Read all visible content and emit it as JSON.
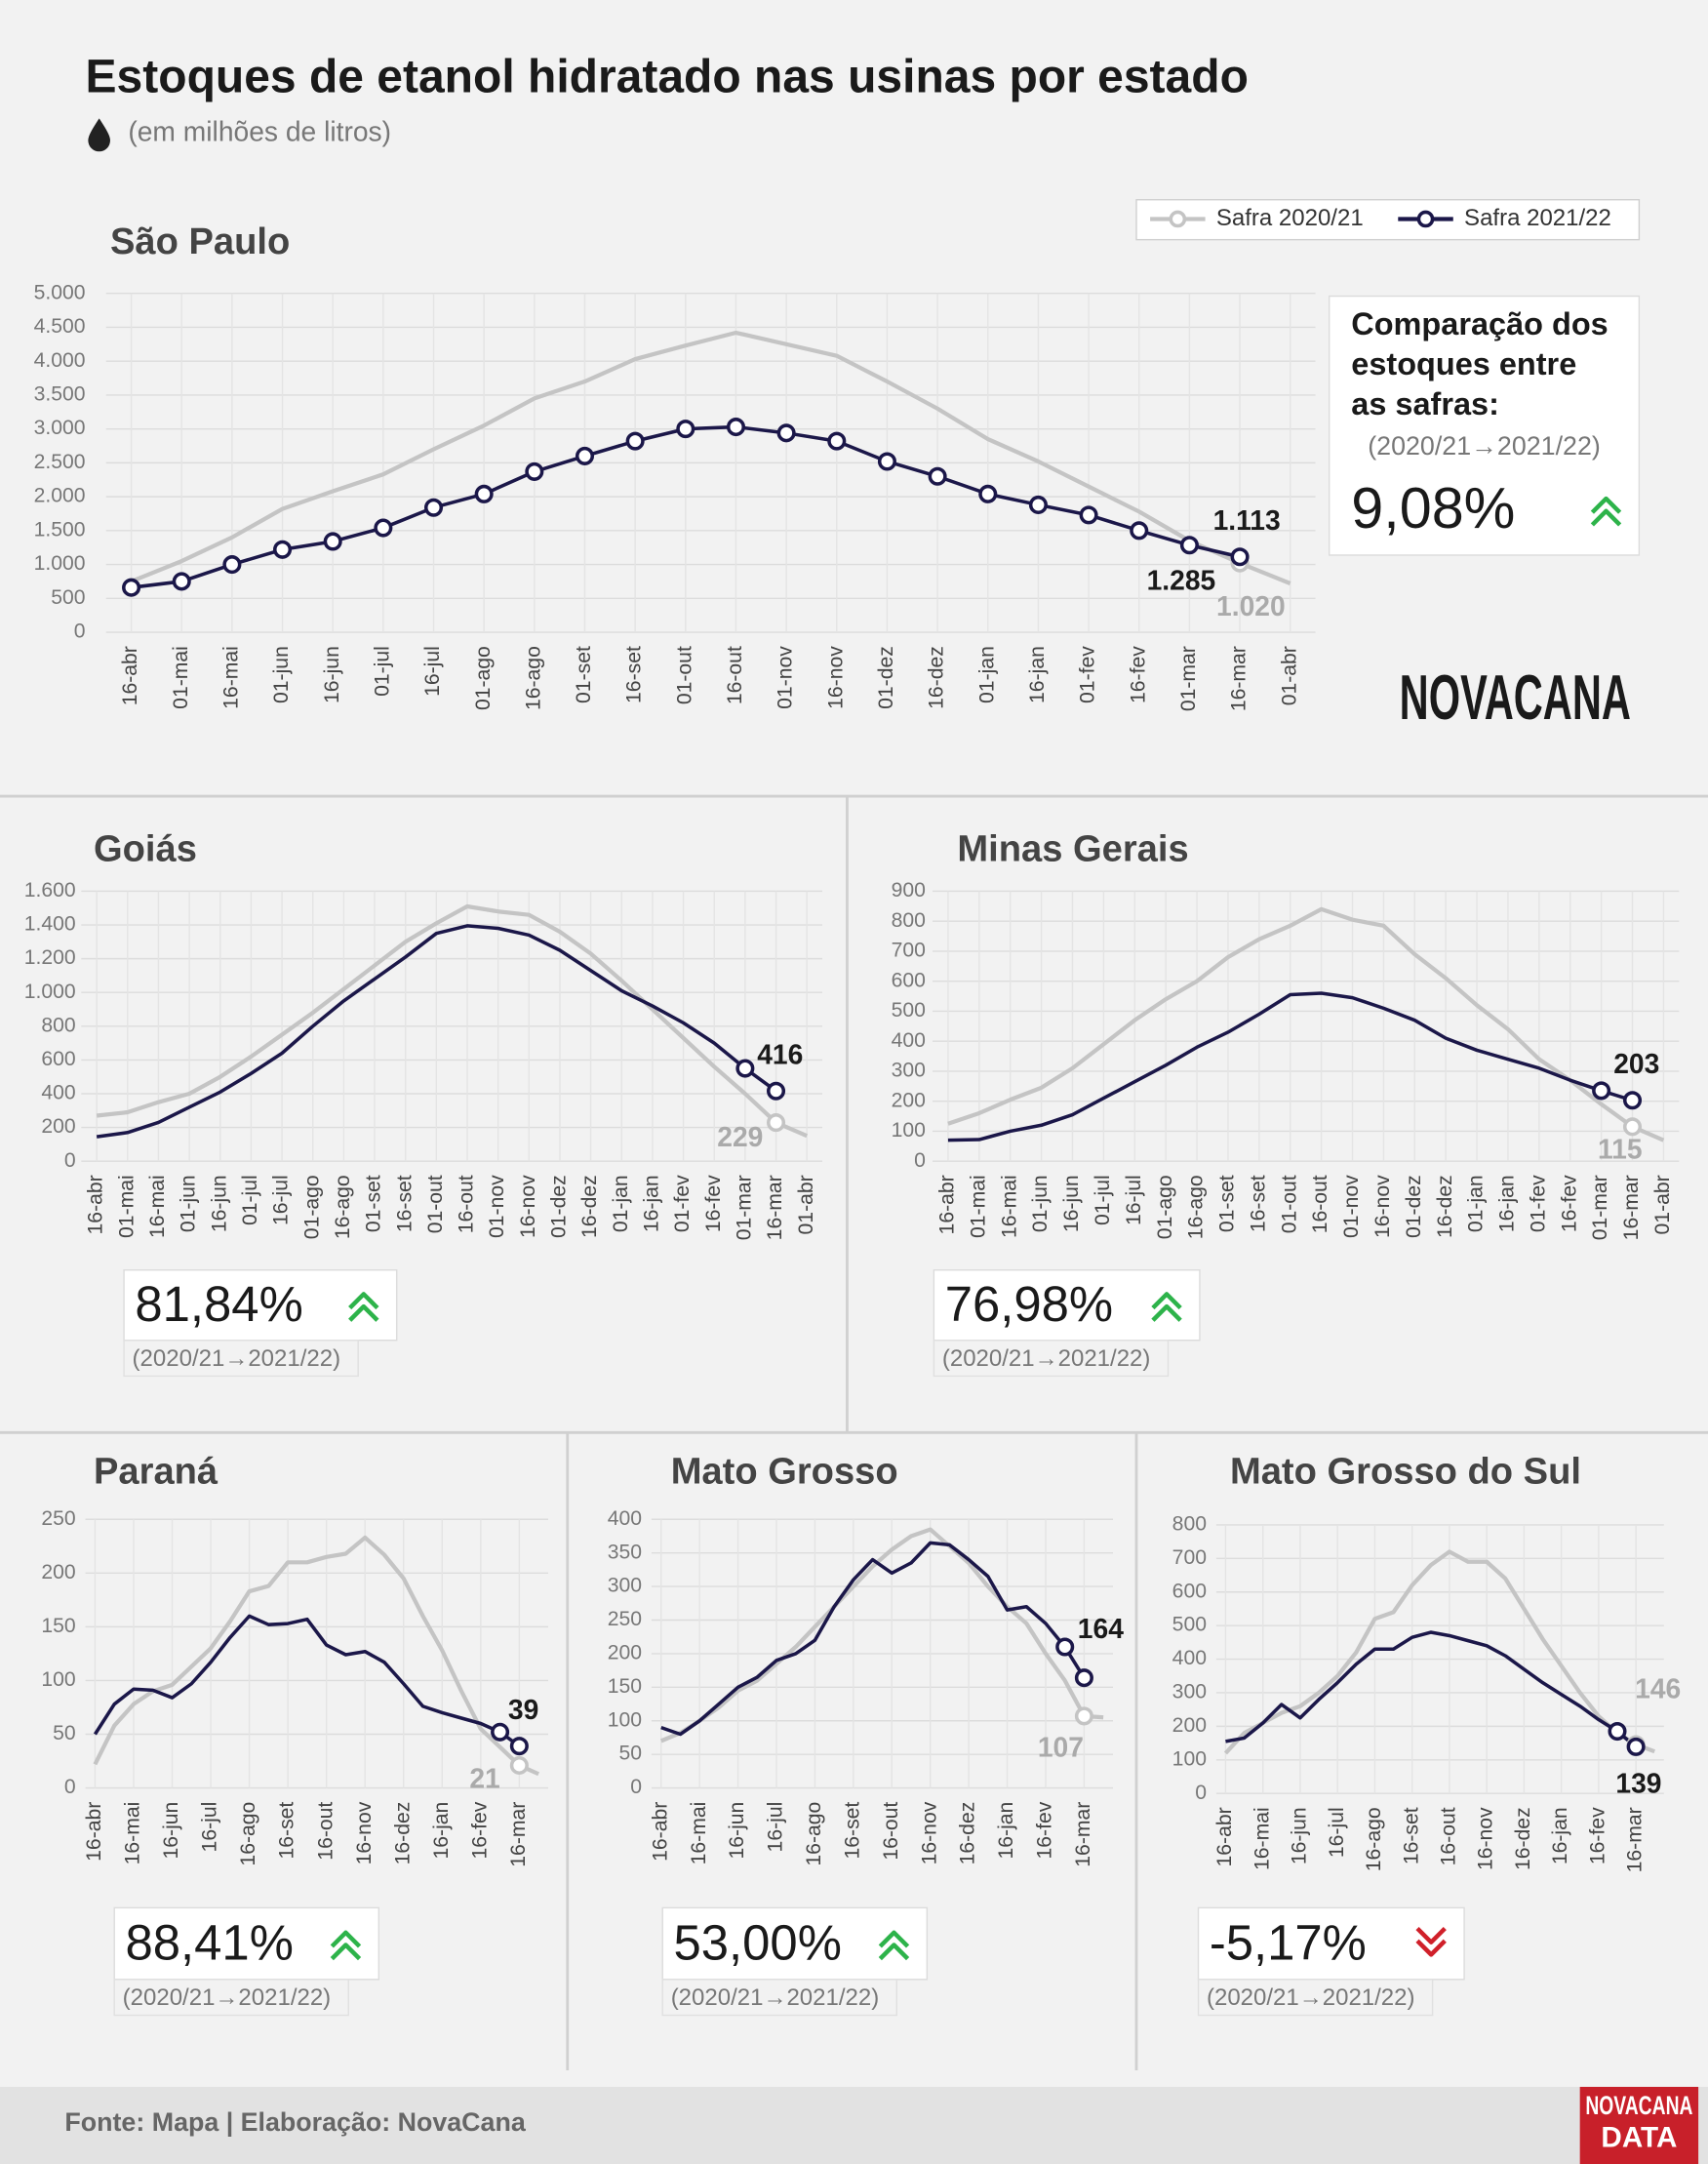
{
  "title": "Estoques de etanol hidratado nas usinas por estado",
  "subtitle": "(em milhões de litros)",
  "logo": "NOVACANA",
  "source": "Fonte: Mapa | Elaboração: NovaCana",
  "badge": [
    "NOVACANA",
    "DATA"
  ],
  "chart_data": [
    {
      "type": "line",
      "title": "São Paulo",
      "legend": "top-right",
      "grid": true,
      "categories": [
        "16-abr",
        "01-mai",
        "16-mai",
        "01-jun",
        "16-jun",
        "01-jul",
        "16-jul",
        "01-ago",
        "16-ago",
        "01-set",
        "16-set",
        "01-out",
        "16-out",
        "01-nov",
        "16-nov",
        "01-dez",
        "16-dez",
        "01-jan",
        "16-jan",
        "01-fev",
        "16-fev",
        "01-mar",
        "16-mar",
        "01-abr"
      ],
      "ylim": [
        0,
        5000
      ],
      "yticks": [
        0,
        500,
        {
          "value": 1000,
          "label": "1.000"
        },
        {
          "value": 1500,
          "label": "1.500"
        },
        {
          "value": 2000,
          "label": "2.000"
        },
        {
          "value": 2500,
          "label": "2.500"
        },
        {
          "value": 3000,
          "label": "3.000"
        },
        {
          "value": 3500,
          "label": "3.500"
        },
        {
          "value": 4000,
          "label": "4.000"
        },
        {
          "value": 4500,
          "label": "4.500"
        },
        {
          "value": 5000,
          "label": "5.000"
        }
      ],
      "series": [
        {
          "name": "Safra 2020/21",
          "color": "#c4c4c4",
          "markers": [
            22
          ],
          "values": [
            750,
            1050,
            1400,
            1820,
            2080,
            2330,
            2700,
            3050,
            3450,
            3700,
            4030,
            4230,
            4420,
            4250,
            4080,
            3700,
            3300,
            2850,
            2520,
            2150,
            1780,
            1350,
            1020,
            720
          ],
          "value_labels": [
            null,
            null,
            null,
            null,
            null,
            null,
            null,
            null,
            null,
            null,
            null,
            null,
            null,
            null,
            null,
            null,
            null,
            null,
            null,
            null,
            null,
            null,
            "1.020",
            null
          ]
        },
        {
          "name": "Safra 2021/22",
          "color": "#1b1749",
          "markers": true,
          "values": [
            660,
            750,
            1000,
            1220,
            1340,
            1540,
            1840,
            2040,
            2370,
            2600,
            2820,
            3000,
            3030,
            2940,
            2820,
            2520,
            2300,
            2040,
            1880,
            1730,
            1500,
            1285,
            1113,
            null
          ],
          "value_labels": [
            null,
            null,
            null,
            null,
            null,
            null,
            null,
            null,
            null,
            null,
            null,
            null,
            null,
            null,
            null,
            null,
            null,
            null,
            null,
            null,
            null,
            "1.285",
            "1.113",
            null
          ]
        }
      ],
      "comparison": {
        "title": [
          "Comparação dos",
          "estoques entre",
          "as safras:"
        ],
        "period": "(2020/21→2021/22)",
        "change": "9,08%",
        "direction": "up"
      }
    },
    {
      "type": "line",
      "title": "Goiás",
      "grid": true,
      "categories": [
        "16-abr",
        "01-mai",
        "16-mai",
        "01-jun",
        "16-jun",
        "01-jul",
        "16-jul",
        "01-ago",
        "16-ago",
        "01-set",
        "16-set",
        "01-out",
        "16-out",
        "01-nov",
        "16-nov",
        "01-dez",
        "16-dez",
        "01-jan",
        "16-jan",
        "01-fev",
        "16-fev",
        "01-mar",
        "16-mar",
        "01-abr"
      ],
      "ylim": [
        0,
        1600
      ],
      "yticks": [
        0,
        200,
        400,
        600,
        800,
        {
          "value": 1000,
          "label": "1.000"
        },
        {
          "value": 1200,
          "label": "1.200"
        },
        {
          "value": 1400,
          "label": "1.400"
        },
        {
          "value": 1600,
          "label": "1.600"
        }
      ],
      "series": [
        {
          "color": "#c4c4c4",
          "markers": [
            22
          ],
          "values": [
            270,
            290,
            350,
            400,
            500,
            620,
            750,
            880,
            1020,
            1160,
            1300,
            1410,
            1510,
            1480,
            1460,
            1360,
            1230,
            1070,
            900,
            730,
            560,
            400,
            229,
            150
          ],
          "value_labels": [
            null,
            null,
            null,
            null,
            null,
            null,
            null,
            null,
            null,
            null,
            null,
            null,
            null,
            null,
            null,
            null,
            null,
            null,
            null,
            null,
            null,
            null,
            "229",
            null
          ]
        },
        {
          "color": "#1b1749",
          "markers": [
            21,
            22
          ],
          "values": [
            145,
            170,
            230,
            320,
            410,
            520,
            640,
            800,
            950,
            1080,
            1210,
            1350,
            1395,
            1380,
            1340,
            1250,
            1130,
            1010,
            920,
            820,
            700,
            550,
            416,
            null
          ],
          "value_labels": [
            null,
            null,
            null,
            null,
            null,
            null,
            null,
            null,
            null,
            null,
            null,
            null,
            null,
            null,
            null,
            null,
            null,
            null,
            null,
            null,
            null,
            null,
            "416",
            null
          ]
        }
      ],
      "comparison": {
        "period": "(2020/21→2021/22)",
        "change": "81,84%",
        "direction": "up"
      }
    },
    {
      "type": "line",
      "title": "Minas Gerais",
      "grid": true,
      "categories": [
        "16-abr",
        "01-mai",
        "16-mai",
        "01-jun",
        "16-jun",
        "01-jul",
        "16-jul",
        "01-ago",
        "16-ago",
        "01-set",
        "16-set",
        "01-out",
        "16-out",
        "01-nov",
        "16-nov",
        "01-dez",
        "16-dez",
        "01-jan",
        "16-jan",
        "01-fev",
        "16-fev",
        "01-mar",
        "16-mar",
        "01-abr"
      ],
      "ylim": [
        0,
        900
      ],
      "yticks": [
        0,
        100,
        200,
        300,
        400,
        500,
        600,
        700,
        800,
        900
      ],
      "series": [
        {
          "color": "#c4c4c4",
          "markers": [
            22
          ],
          "values": [
            125,
            160,
            205,
            245,
            310,
            390,
            470,
            540,
            600,
            680,
            740,
            785,
            840,
            805,
            785,
            690,
            610,
            520,
            440,
            340,
            270,
            190,
            115,
            70
          ],
          "value_labels": [
            null,
            null,
            null,
            null,
            null,
            null,
            null,
            null,
            null,
            null,
            null,
            null,
            null,
            null,
            null,
            null,
            null,
            null,
            null,
            null,
            null,
            null,
            "115",
            null
          ]
        },
        {
          "color": "#1b1749",
          "markers": [
            21,
            22
          ],
          "values": [
            70,
            72,
            100,
            120,
            155,
            210,
            265,
            320,
            380,
            430,
            490,
            555,
            560,
            545,
            510,
            470,
            410,
            370,
            340,
            310,
            270,
            235,
            203,
            null
          ],
          "value_labels": [
            null,
            null,
            null,
            null,
            null,
            null,
            null,
            null,
            null,
            null,
            null,
            null,
            null,
            null,
            null,
            null,
            null,
            null,
            null,
            null,
            null,
            null,
            "203",
            null
          ]
        }
      ],
      "comparison": {
        "period": "(2020/21→2021/22)",
        "change": "76,98%",
        "direction": "up"
      }
    },
    {
      "type": "line",
      "title": "Paraná",
      "grid": true,
      "categories": [
        "16-abr",
        null,
        "16-mai",
        null,
        "16-jun",
        null,
        "16-jul",
        null,
        "16-ago",
        null,
        "16-set",
        null,
        "16-out",
        null,
        "16-nov",
        null,
        "16-dez",
        null,
        "16-jan",
        null,
        "16-fev",
        null,
        "16-mar",
        null
      ],
      "ylim": [
        0,
        250
      ],
      "yticks": [
        0,
        50,
        100,
        150,
        200,
        250
      ],
      "series": [
        {
          "color": "#c4c4c4",
          "markers": [
            22
          ],
          "values": [
            22,
            58,
            78,
            90,
            96,
            113,
            130,
            155,
            183,
            188,
            210,
            210,
            215,
            218,
            233,
            217,
            195,
            160,
            128,
            90,
            55,
            38,
            21,
            13
          ],
          "value_labels": [
            null,
            null,
            null,
            null,
            null,
            null,
            null,
            null,
            null,
            null,
            null,
            null,
            null,
            null,
            null,
            null,
            null,
            null,
            null,
            null,
            null,
            null,
            "21",
            null
          ]
        },
        {
          "color": "#1b1749",
          "markers": [
            21,
            22
          ],
          "values": [
            50,
            78,
            92,
            91,
            84,
            97,
            117,
            140,
            160,
            152,
            153,
            157,
            133,
            124,
            127,
            117,
            97,
            76,
            70,
            65,
            60,
            52,
            39,
            null
          ],
          "value_labels": [
            null,
            null,
            null,
            null,
            null,
            null,
            null,
            null,
            null,
            null,
            null,
            null,
            null,
            null,
            null,
            null,
            null,
            null,
            null,
            null,
            null,
            null,
            "39",
            null
          ]
        }
      ],
      "comparison": {
        "period": "(2020/21→2021/22)",
        "change": "88,41%",
        "direction": "up"
      }
    },
    {
      "type": "line",
      "title": "Mato Grosso",
      "grid": true,
      "categories": [
        "16-abr",
        null,
        "16-mai",
        null,
        "16-jun",
        null,
        "16-jul",
        null,
        "16-ago",
        null,
        "16-set",
        null,
        "16-out",
        null,
        "16-nov",
        null,
        "16-dez",
        null,
        "16-jan",
        null,
        "16-fev",
        null,
        "16-mar",
        null
      ],
      "ylim": [
        0,
        400
      ],
      "yticks": [
        0,
        50,
        100,
        150,
        200,
        250,
        300,
        350,
        400
      ],
      "series": [
        {
          "color": "#c4c4c4",
          "markers": [
            22
          ],
          "values": [
            70,
            82,
            100,
            120,
            145,
            160,
            185,
            210,
            240,
            270,
            300,
            330,
            355,
            375,
            385,
            360,
            335,
            300,
            270,
            245,
            200,
            160,
            107,
            105
          ],
          "value_labels": [
            null,
            null,
            null,
            null,
            null,
            null,
            null,
            null,
            null,
            null,
            null,
            null,
            null,
            null,
            null,
            null,
            null,
            null,
            null,
            null,
            null,
            null,
            "107",
            null
          ]
        },
        {
          "color": "#1b1749",
          "markers": [
            21,
            22
          ],
          "values": [
            90,
            80,
            100,
            125,
            150,
            165,
            190,
            200,
            220,
            270,
            310,
            340,
            320,
            335,
            365,
            362,
            340,
            315,
            265,
            270,
            245,
            210,
            164,
            null
          ],
          "value_labels": [
            null,
            null,
            null,
            null,
            null,
            null,
            null,
            null,
            null,
            null,
            null,
            null,
            null,
            null,
            null,
            null,
            null,
            null,
            null,
            null,
            null,
            null,
            "164",
            null
          ]
        }
      ],
      "comparison": {
        "period": "(2020/21→2021/22)",
        "change": "53,00%",
        "direction": "up"
      }
    },
    {
      "type": "line",
      "title": "Mato Grosso do Sul",
      "grid": true,
      "categories": [
        "16-abr",
        null,
        "16-mai",
        null,
        "16-jun",
        null,
        "16-jul",
        null,
        "16-ago",
        null,
        "16-set",
        null,
        "16-out",
        null,
        "16-nov",
        null,
        "16-dez",
        null,
        "16-jan",
        null,
        "16-fev",
        null,
        "16-mar",
        null
      ],
      "ylim": [
        0,
        800
      ],
      "yticks": [
        0,
        100,
        200,
        300,
        400,
        500,
        600,
        700,
        800
      ],
      "series": [
        {
          "color": "#c4c4c4",
          "markers": [
            22
          ],
          "values": [
            120,
            180,
            210,
            240,
            260,
            300,
            350,
            420,
            520,
            540,
            620,
            680,
            720,
            690,
            690,
            640,
            550,
            460,
            380,
            300,
            230,
            180,
            146,
            125
          ],
          "value_labels": [
            null,
            null,
            null,
            null,
            null,
            null,
            null,
            null,
            null,
            null,
            null,
            null,
            null,
            null,
            null,
            null,
            null,
            null,
            null,
            null,
            null,
            null,
            "146",
            null
          ]
        },
        {
          "color": "#1b1749",
          "markers": [
            21,
            22
          ],
          "values": [
            155,
            165,
            210,
            265,
            225,
            280,
            330,
            385,
            430,
            430,
            465,
            480,
            470,
            455,
            440,
            410,
            370,
            330,
            295,
            260,
            220,
            185,
            139,
            null
          ],
          "value_labels": [
            null,
            null,
            null,
            null,
            null,
            null,
            null,
            null,
            null,
            null,
            null,
            null,
            null,
            null,
            null,
            null,
            null,
            null,
            null,
            null,
            null,
            null,
            "139",
            null
          ]
        }
      ],
      "comparison": {
        "period": "(2020/21→2021/22)",
        "change": "-5,17%",
        "direction": "down"
      }
    }
  ]
}
